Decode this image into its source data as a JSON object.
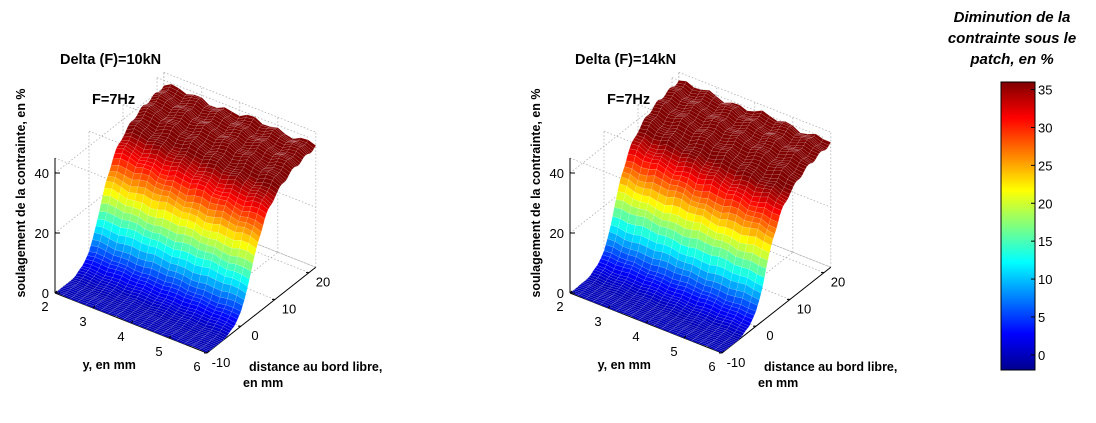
{
  "chart_data": [
    {
      "type": "surface",
      "title": "Delta (F)=10kN",
      "subtitle": "F=7Hz",
      "xlabel": "y, en mm",
      "ylabel": "distance au bord libre,\nen mm",
      "zlabel": "soulagement de la contrainte, en %",
      "x_ticks": [
        2,
        3,
        4,
        5,
        6
      ],
      "y_ticks": [
        -10,
        0,
        10,
        20
      ],
      "z_ticks": [
        0,
        20,
        40
      ],
      "xlim": [
        2,
        6
      ],
      "ylim": [
        -10,
        20
      ],
      "zlim": [
        0,
        45
      ],
      "profile": {
        "distance": [
          -10,
          -6,
          -4,
          -2,
          0,
          1,
          2,
          3,
          4,
          5,
          6,
          7,
          8,
          10,
          12,
          14,
          16,
          18,
          20,
          22
        ],
        "value": [
          0,
          0,
          0.5,
          2,
          5,
          8,
          12,
          16,
          20,
          24,
          27,
          30,
          32,
          35,
          37,
          38.5,
          39.5,
          40,
          40.5,
          41
        ]
      },
      "colormap": "jet",
      "clim": [
        0,
        36
      ]
    },
    {
      "type": "surface",
      "title": "Delta (F)=14kN",
      "subtitle": "F=7Hz",
      "xlabel": "y, en mm",
      "ylabel": "distance au bord libre,\nen mm",
      "zlabel": "soulagement de la contrainte, en %",
      "x_ticks": [
        2,
        3,
        4,
        5,
        6
      ],
      "y_ticks": [
        -10,
        0,
        10,
        20
      ],
      "z_ticks": [
        0,
        20,
        40
      ],
      "xlim": [
        2,
        6
      ],
      "ylim": [
        -10,
        20
      ],
      "zlim": [
        0,
        45
      ],
      "profile": {
        "distance": [
          -10,
          -6,
          -4,
          -2,
          0,
          1,
          2,
          3,
          4,
          5,
          6,
          7,
          8,
          10,
          12,
          14,
          16,
          18,
          20,
          22
        ],
        "value": [
          0,
          0,
          0.5,
          2,
          5,
          8,
          12,
          17,
          21,
          25,
          28,
          31,
          33,
          36,
          38,
          39.5,
          40.5,
          41,
          41.5,
          42
        ]
      },
      "colormap": "jet",
      "clim": [
        0,
        36
      ]
    }
  ],
  "colorbar": {
    "title_lines": [
      "Diminution de la",
      "contrainte sous le",
      "patch, en %"
    ],
    "ticks": [
      0,
      5,
      10,
      15,
      20,
      25,
      30,
      35
    ],
    "min": -2,
    "max": 36
  }
}
